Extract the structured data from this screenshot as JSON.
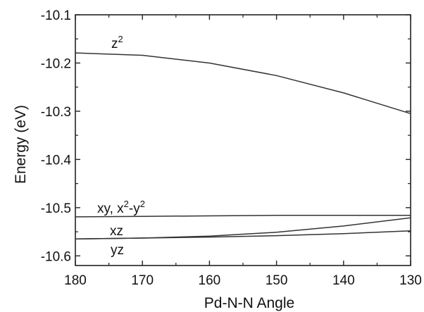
{
  "chart_data": {
    "type": "line",
    "title": "",
    "xlabel": "Pd-N-N Angle",
    "ylabel": "Energy (eV)",
    "xlim": [
      180,
      130
    ],
    "ylim": [
      -10.62,
      -10.1
    ],
    "x_reversed": true,
    "xticks": [
      "180",
      "170",
      "160",
      "150",
      "140",
      "130"
    ],
    "yticks": [
      "-10.1",
      "-10.2",
      "-10.3",
      "-10.4",
      "-10.5",
      "-10.6"
    ],
    "x": [
      180,
      170,
      160,
      150,
      140,
      130
    ],
    "series": [
      {
        "name": "z2",
        "label_base": "z",
        "label_sup": "2",
        "values": [
          -10.179,
          -10.184,
          -10.2,
          -10.226,
          -10.262,
          -10.305
        ]
      },
      {
        "name": "xy, x2-y2",
        "label_parts": [
          "xy, x",
          "2",
          "-y",
          "2"
        ],
        "values": [
          -10.519,
          -10.518,
          -10.517,
          -10.516,
          -10.516,
          -10.516
        ]
      },
      {
        "name": "xz",
        "label_base": "xz",
        "values": [
          -10.565,
          -10.563,
          -10.559,
          -10.551,
          -10.538,
          -10.521
        ]
      },
      {
        "name": "yz",
        "label_base": "yz",
        "values": [
          -10.565,
          -10.563,
          -10.561,
          -10.558,
          -10.554,
          -10.548
        ]
      }
    ],
    "grid": false,
    "legend": "none",
    "line_color": "#333333"
  }
}
